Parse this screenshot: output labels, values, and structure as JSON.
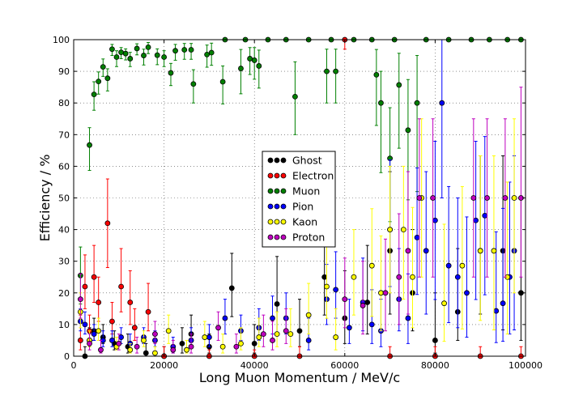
{
  "chart_data": {
    "type": "scatter",
    "xlabel": "Long Muon Momentum / MeV/c",
    "ylabel": "Efficiency / %",
    "xlim": [
      0,
      100000
    ],
    "ylim": [
      0,
      100
    ],
    "xticks": [
      0,
      20000,
      40000,
      60000,
      80000,
      100000
    ],
    "yticks": [
      0,
      10,
      20,
      30,
      40,
      50,
      60,
      70,
      80,
      90,
      100
    ],
    "grid": true,
    "legend_position": "center",
    "error_bars": true,
    "series": [
      {
        "name": "Ghost",
        "color": "#000000",
        "points": [
          [
            2500,
            0,
            0,
            3
          ],
          [
            3500,
            5,
            2,
            4
          ],
          [
            4500,
            8,
            3,
            4
          ],
          [
            6500,
            6,
            2,
            4
          ],
          [
            9000,
            4,
            2,
            4
          ],
          [
            12000,
            3,
            2,
            4
          ],
          [
            16000,
            1,
            1,
            3
          ],
          [
            20000,
            0,
            0,
            3
          ],
          [
            24000,
            4,
            3,
            5
          ],
          [
            26000,
            7,
            4,
            6
          ],
          [
            30000,
            3,
            2,
            4
          ],
          [
            35000,
            21.5,
            9,
            11
          ],
          [
            40000,
            4,
            3,
            6
          ],
          [
            45000,
            16.5,
            9,
            15
          ],
          [
            50000,
            8,
            5,
            10
          ],
          [
            55500,
            25,
            12,
            20
          ],
          [
            60000,
            12,
            8,
            15
          ],
          [
            65000,
            17,
            10,
            18
          ],
          [
            70000,
            33.3,
            20,
            25
          ],
          [
            75000,
            20,
            12,
            20
          ],
          [
            80000,
            5,
            4,
            15
          ],
          [
            85000,
            14,
            9,
            20
          ],
          [
            90000,
            33.3,
            20,
            30
          ],
          [
            95000,
            33.3,
            25,
            30
          ],
          [
            99000,
            20,
            15,
            30
          ]
        ]
      },
      {
        "name": "Electron",
        "color": "#ff0000",
        "points": [
          [
            1500,
            5,
            3,
            8
          ],
          [
            2500,
            22,
            7,
            10
          ],
          [
            3500,
            8,
            4,
            5
          ],
          [
            4500,
            25,
            8,
            10
          ],
          [
            5500,
            17,
            6,
            8
          ],
          [
            7500,
            42,
            14,
            14
          ],
          [
            8500,
            11,
            4,
            6
          ],
          [
            10500,
            22,
            8,
            12
          ],
          [
            12500,
            17,
            7,
            10
          ],
          [
            13500,
            9,
            4,
            6
          ],
          [
            16500,
            14,
            6,
            9
          ],
          [
            20000,
            0,
            0,
            3
          ],
          [
            30000,
            0,
            0,
            2
          ],
          [
            40000,
            0,
            0,
            2
          ],
          [
            50000,
            0,
            0,
            3
          ],
          [
            60000,
            100,
            3,
            0
          ],
          [
            70000,
            0,
            0,
            3
          ],
          [
            80000,
            0,
            0,
            3
          ],
          [
            90000,
            0,
            0,
            3
          ],
          [
            99000,
            0,
            0,
            3
          ]
        ]
      },
      {
        "name": "Muon",
        "color": "#008000",
        "points": [
          [
            1500,
            25.5,
            9,
            9
          ],
          [
            3500,
            66.7,
            8,
            5.5
          ],
          [
            4500,
            82.7,
            5,
            4
          ],
          [
            5500,
            86.8,
            4,
            3
          ],
          [
            6500,
            91.4,
            3,
            2.5
          ],
          [
            7500,
            87.8,
            4,
            3
          ],
          [
            8500,
            97,
            2,
            1.5
          ],
          [
            9500,
            94.5,
            3,
            2
          ],
          [
            10500,
            96,
            2,
            1.5
          ],
          [
            11500,
            95.6,
            2,
            1.5
          ],
          [
            12500,
            94,
            2.5,
            2
          ],
          [
            14000,
            97.2,
            2,
            1.5
          ],
          [
            15500,
            95,
            3,
            2
          ],
          [
            16500,
            97.6,
            2,
            1.5
          ],
          [
            18500,
            95.1,
            3,
            2
          ],
          [
            20000,
            94.5,
            3,
            2
          ],
          [
            21500,
            89.5,
            4,
            3
          ],
          [
            22500,
            96.5,
            3,
            2
          ],
          [
            24500,
            96.8,
            3,
            2
          ],
          [
            26000,
            96.8,
            3,
            2
          ],
          [
            26500,
            86,
            6,
            4.5
          ],
          [
            29500,
            95.3,
            4,
            3
          ],
          [
            30500,
            95.9,
            4,
            3
          ],
          [
            33000,
            86.7,
            7,
            5
          ],
          [
            37000,
            90.9,
            8,
            6
          ],
          [
            39000,
            94,
            5,
            3.5
          ],
          [
            40000,
            93.5,
            6,
            4
          ],
          [
            41000,
            91.7,
            7,
            5
          ],
          [
            49000,
            82,
            12,
            11
          ],
          [
            56000,
            90,
            10,
            7
          ],
          [
            58000,
            90,
            10,
            7
          ],
          [
            67000,
            88.9,
            16,
            8
          ],
          [
            68000,
            80,
            22,
            10
          ],
          [
            70000,
            62.5,
            20,
            16
          ],
          [
            72000,
            85.7,
            20,
            10
          ],
          [
            74000,
            71.4,
            22,
            16
          ],
          [
            76000,
            80,
            28,
            15
          ],
          [
            33500,
            100,
            0,
            0
          ],
          [
            38000,
            100,
            0,
            0
          ],
          [
            43000,
            100,
            0,
            0
          ],
          [
            47000,
            100,
            0,
            0
          ],
          [
            52000,
            100,
            0,
            0
          ],
          [
            57000,
            100,
            0,
            0
          ],
          [
            62000,
            100,
            0,
            0
          ],
          [
            66000,
            100,
            0,
            0
          ],
          [
            71000,
            100,
            0,
            0
          ],
          [
            78000,
            100,
            0,
            0
          ],
          [
            83000,
            100,
            0,
            0
          ],
          [
            88000,
            100,
            0,
            0
          ],
          [
            92000,
            100,
            0,
            0
          ],
          [
            96000,
            100,
            0,
            0
          ],
          [
            99000,
            100,
            0,
            0
          ]
        ]
      },
      {
        "name": "Pion",
        "color": "#0000ff",
        "points": [
          [
            1500,
            11,
            3,
            4
          ],
          [
            2500,
            10,
            3,
            4
          ],
          [
            4500,
            7,
            2,
            3
          ],
          [
            6500,
            5,
            2,
            3
          ],
          [
            8500,
            5,
            2,
            3
          ],
          [
            10500,
            6,
            2,
            3
          ],
          [
            12500,
            4,
            2,
            3
          ],
          [
            15500,
            6,
            2,
            3
          ],
          [
            18000,
            5,
            2,
            3
          ],
          [
            22000,
            3,
            2,
            3
          ],
          [
            26000,
            5,
            2,
            4
          ],
          [
            30000,
            6,
            3,
            4
          ],
          [
            33500,
            12,
            5,
            6
          ],
          [
            37000,
            8,
            3,
            5
          ],
          [
            41000,
            9,
            4,
            6
          ],
          [
            44000,
            12,
            5,
            7
          ],
          [
            47000,
            12,
            5,
            8
          ],
          [
            52000,
            5,
            3,
            7
          ],
          [
            56000,
            18,
            8,
            11
          ],
          [
            58000,
            21,
            9,
            12
          ],
          [
            61000,
            9,
            5,
            9
          ],
          [
            64000,
            17,
            9,
            14
          ],
          [
            66000,
            10,
            6,
            11
          ],
          [
            68000,
            8,
            5,
            10
          ],
          [
            70000,
            40,
            18,
            22
          ],
          [
            72000,
            18,
            10,
            16
          ],
          [
            74000,
            12,
            8,
            14
          ],
          [
            76000,
            37.5,
            18,
            22
          ],
          [
            78000,
            33.3,
            20,
            25
          ],
          [
            80000,
            42.9,
            25,
            25
          ],
          [
            81500,
            80,
            30,
            20
          ],
          [
            83000,
            28.6,
            18,
            25
          ],
          [
            85000,
            25,
            16,
            25
          ],
          [
            87000,
            20,
            14,
            24
          ],
          [
            89000,
            42.9,
            25,
            25
          ],
          [
            91000,
            44.4,
            25,
            25
          ],
          [
            93500,
            14.3,
            10,
            25
          ],
          [
            95000,
            16.7,
            12,
            30
          ],
          [
            96500,
            25,
            18,
            30
          ],
          [
            97500,
            33.3,
            25,
            30
          ]
        ]
      },
      {
        "name": "Kaon",
        "color": "#ffff00",
        "points": [
          [
            1500,
            14,
            5,
            6
          ],
          [
            3500,
            5,
            2,
            3
          ],
          [
            5500,
            8,
            3,
            4
          ],
          [
            9500,
            3,
            1,
            3
          ],
          [
            12500,
            2,
            1,
            2
          ],
          [
            15500,
            5,
            2,
            3
          ],
          [
            18000,
            1,
            1,
            2
          ],
          [
            21000,
            8,
            4,
            5
          ],
          [
            25000,
            2,
            1,
            3
          ],
          [
            29000,
            6,
            3,
            5
          ],
          [
            33000,
            3,
            2,
            4
          ],
          [
            37000,
            4,
            2,
            5
          ],
          [
            41000,
            6,
            3,
            6
          ],
          [
            45000,
            7,
            4,
            7
          ],
          [
            48000,
            7,
            4,
            8
          ],
          [
            52000,
            13,
            6,
            10
          ],
          [
            56000,
            22,
            10,
            13
          ],
          [
            58000,
            6,
            4,
            9
          ],
          [
            62000,
            25,
            12,
            15
          ],
          [
            66000,
            28.6,
            16,
            18
          ],
          [
            68000,
            20,
            12,
            18
          ],
          [
            70000,
            40,
            20,
            20
          ],
          [
            73000,
            40,
            22,
            20
          ],
          [
            75000,
            25,
            16,
            22
          ],
          [
            77000,
            50,
            25,
            25
          ],
          [
            82000,
            16.7,
            12,
            25
          ],
          [
            86000,
            28.6,
            20,
            25
          ],
          [
            90000,
            33.3,
            22,
            30
          ],
          [
            93000,
            33.3,
            25,
            30
          ],
          [
            96000,
            25,
            18,
            30
          ],
          [
            97500,
            50,
            30,
            25
          ]
        ]
      },
      {
        "name": "Proton",
        "color": "#bf00bf",
        "points": [
          [
            1500,
            18,
            6,
            8
          ],
          [
            3500,
            4,
            2,
            3
          ],
          [
            6000,
            2,
            1,
            3
          ],
          [
            10000,
            4,
            2,
            3
          ],
          [
            14000,
            3,
            2,
            3
          ],
          [
            18000,
            7,
            3,
            4
          ],
          [
            22000,
            2,
            1,
            3
          ],
          [
            26000,
            3,
            2,
            4
          ],
          [
            32000,
            9,
            4,
            5
          ],
          [
            36000,
            3,
            2,
            4
          ],
          [
            42000,
            7,
            4,
            6
          ],
          [
            44000,
            5,
            3,
            6
          ],
          [
            47000,
            8,
            4,
            7
          ],
          [
            60000,
            18,
            9,
            13
          ],
          [
            64000,
            16,
            9,
            14
          ],
          [
            69000,
            20,
            12,
            17
          ],
          [
            72000,
            25,
            15,
            20
          ],
          [
            74000,
            33.3,
            20,
            25
          ],
          [
            76500,
            50,
            25,
            25
          ],
          [
            79500,
            50,
            25,
            25
          ],
          [
            88500,
            50,
            25,
            25
          ],
          [
            91500,
            50,
            25,
            25
          ],
          [
            95500,
            50,
            25,
            25
          ],
          [
            99000,
            50,
            25,
            35
          ]
        ]
      }
    ]
  }
}
